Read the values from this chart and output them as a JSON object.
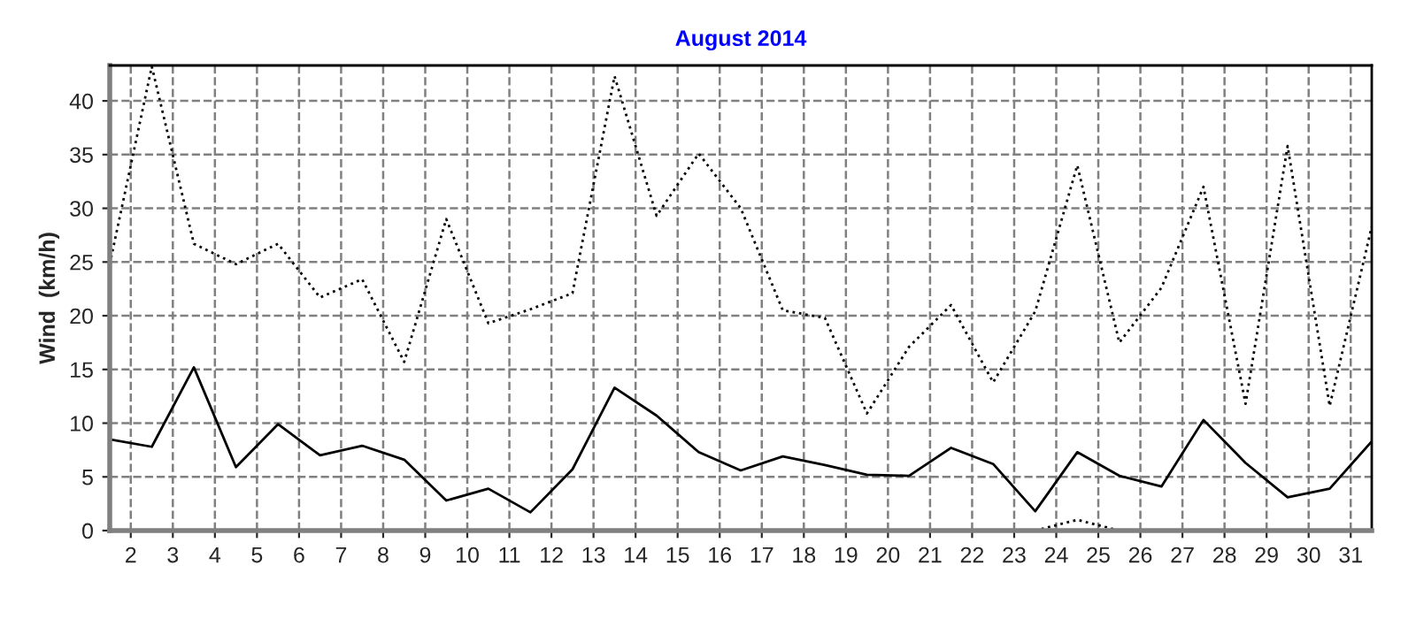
{
  "chart_data": {
    "type": "line",
    "title": "August 2014",
    "ylabel": "Wind  (km/h)",
    "x": [
      1.5,
      2.5,
      3.5,
      4.5,
      5.5,
      6.5,
      7.5,
      8.5,
      9.5,
      10.5,
      11.5,
      12.5,
      13.5,
      14.5,
      15.5,
      16.5,
      17.5,
      18.5,
      19.5,
      20.5,
      21.5,
      22.5,
      23.5,
      24.5,
      25.5,
      26.5,
      27.5,
      28.5,
      29.5,
      30.5,
      31.5
    ],
    "series": [
      {
        "color": "#000000",
        "line_style": "dotted",
        "values": [
          24.8,
          43.2,
          26.7,
          24.8,
          26.7,
          21.7,
          23.4,
          15.7,
          29.0,
          19.3,
          20.6,
          22.1,
          42.3,
          29.3,
          35.1,
          30.0,
          20.5,
          19.8,
          10.9,
          17.1,
          21.0,
          13.8,
          20.4,
          34.0,
          17.5,
          22.6,
          32.0,
          11.8,
          35.8,
          11.6,
          28.3
        ]
      },
      {
        "color": "#000000",
        "line_style": "solid",
        "values": [
          8.5,
          7.8,
          15.2,
          5.9,
          9.9,
          7.0,
          7.9,
          6.6,
          2.8,
          3.9,
          1.7,
          5.7,
          13.3,
          10.7,
          7.3,
          5.6,
          6.9,
          6.1,
          5.2,
          5.1,
          7.7,
          6.2,
          1.8,
          7.3,
          5.1,
          4.1,
          10.3,
          6.3,
          3.1,
          3.9,
          8.3
        ]
      },
      {
        "color": "#000000",
        "line_style": "dotted",
        "values": [
          null,
          null,
          null,
          null,
          null,
          null,
          null,
          null,
          null,
          null,
          null,
          null,
          null,
          null,
          null,
          null,
          null,
          null,
          null,
          null,
          null,
          null,
          0,
          1.0,
          0,
          null,
          null,
          null,
          null,
          null,
          null
        ]
      }
    ],
    "xlim": [
      1.5,
      31.5
    ],
    "xticks": [
      2,
      3,
      4,
      5,
      6,
      7,
      8,
      9,
      10,
      11,
      12,
      13,
      14,
      15,
      16,
      17,
      18,
      19,
      20,
      21,
      22,
      23,
      24,
      25,
      26,
      27,
      28,
      29,
      30,
      31
    ],
    "ylim": [
      0,
      43.3
    ],
    "yticks": [
      0,
      5,
      10,
      15,
      20,
      25,
      30,
      35,
      40
    ],
    "grid": true,
    "legend": false
  }
}
